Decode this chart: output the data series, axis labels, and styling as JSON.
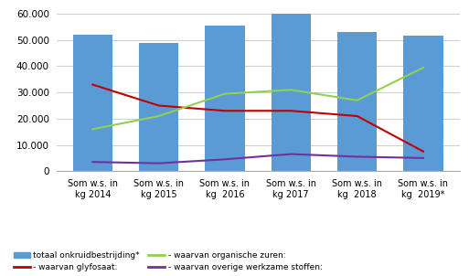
{
  "categories": [
    "Som w.s. in\nkg 2014",
    "Som w.s. in\nkg 2015",
    "Som w.s. in\nkg  2016",
    "Som w.s. in\nkg 2017",
    "Som w.s. in\nkg  2018",
    "Som w.s. in\nkg  2019*"
  ],
  "bar_values": [
    52000,
    49000,
    55500,
    60000,
    53000,
    51500
  ],
  "glyfosaat": [
    33000,
    25000,
    23000,
    23000,
    21000,
    7500
  ],
  "organische_zuren": [
    16000,
    21000,
    29500,
    31000,
    27000,
    39500
  ],
  "overige": [
    3500,
    3000,
    4500,
    6500,
    5500,
    5000
  ],
  "bar_color": "#5B9BD5",
  "glyfosaat_color": "#C00000",
  "organische_zuren_color": "#92D050",
  "overige_color": "#7030A0",
  "ylim": [
    0,
    60000
  ],
  "yticks": [
    0,
    10000,
    20000,
    30000,
    40000,
    50000,
    60000
  ],
  "legend_labels": [
    "totaal onkruidbestrijding*",
    "- waarvan glyfosaat:",
    "- waarvan organische zuren:",
    "- waarvan overige werkzame stoffen:"
  ],
  "background_color": "#FFFFFF",
  "grid_color": "#D0D0D0"
}
